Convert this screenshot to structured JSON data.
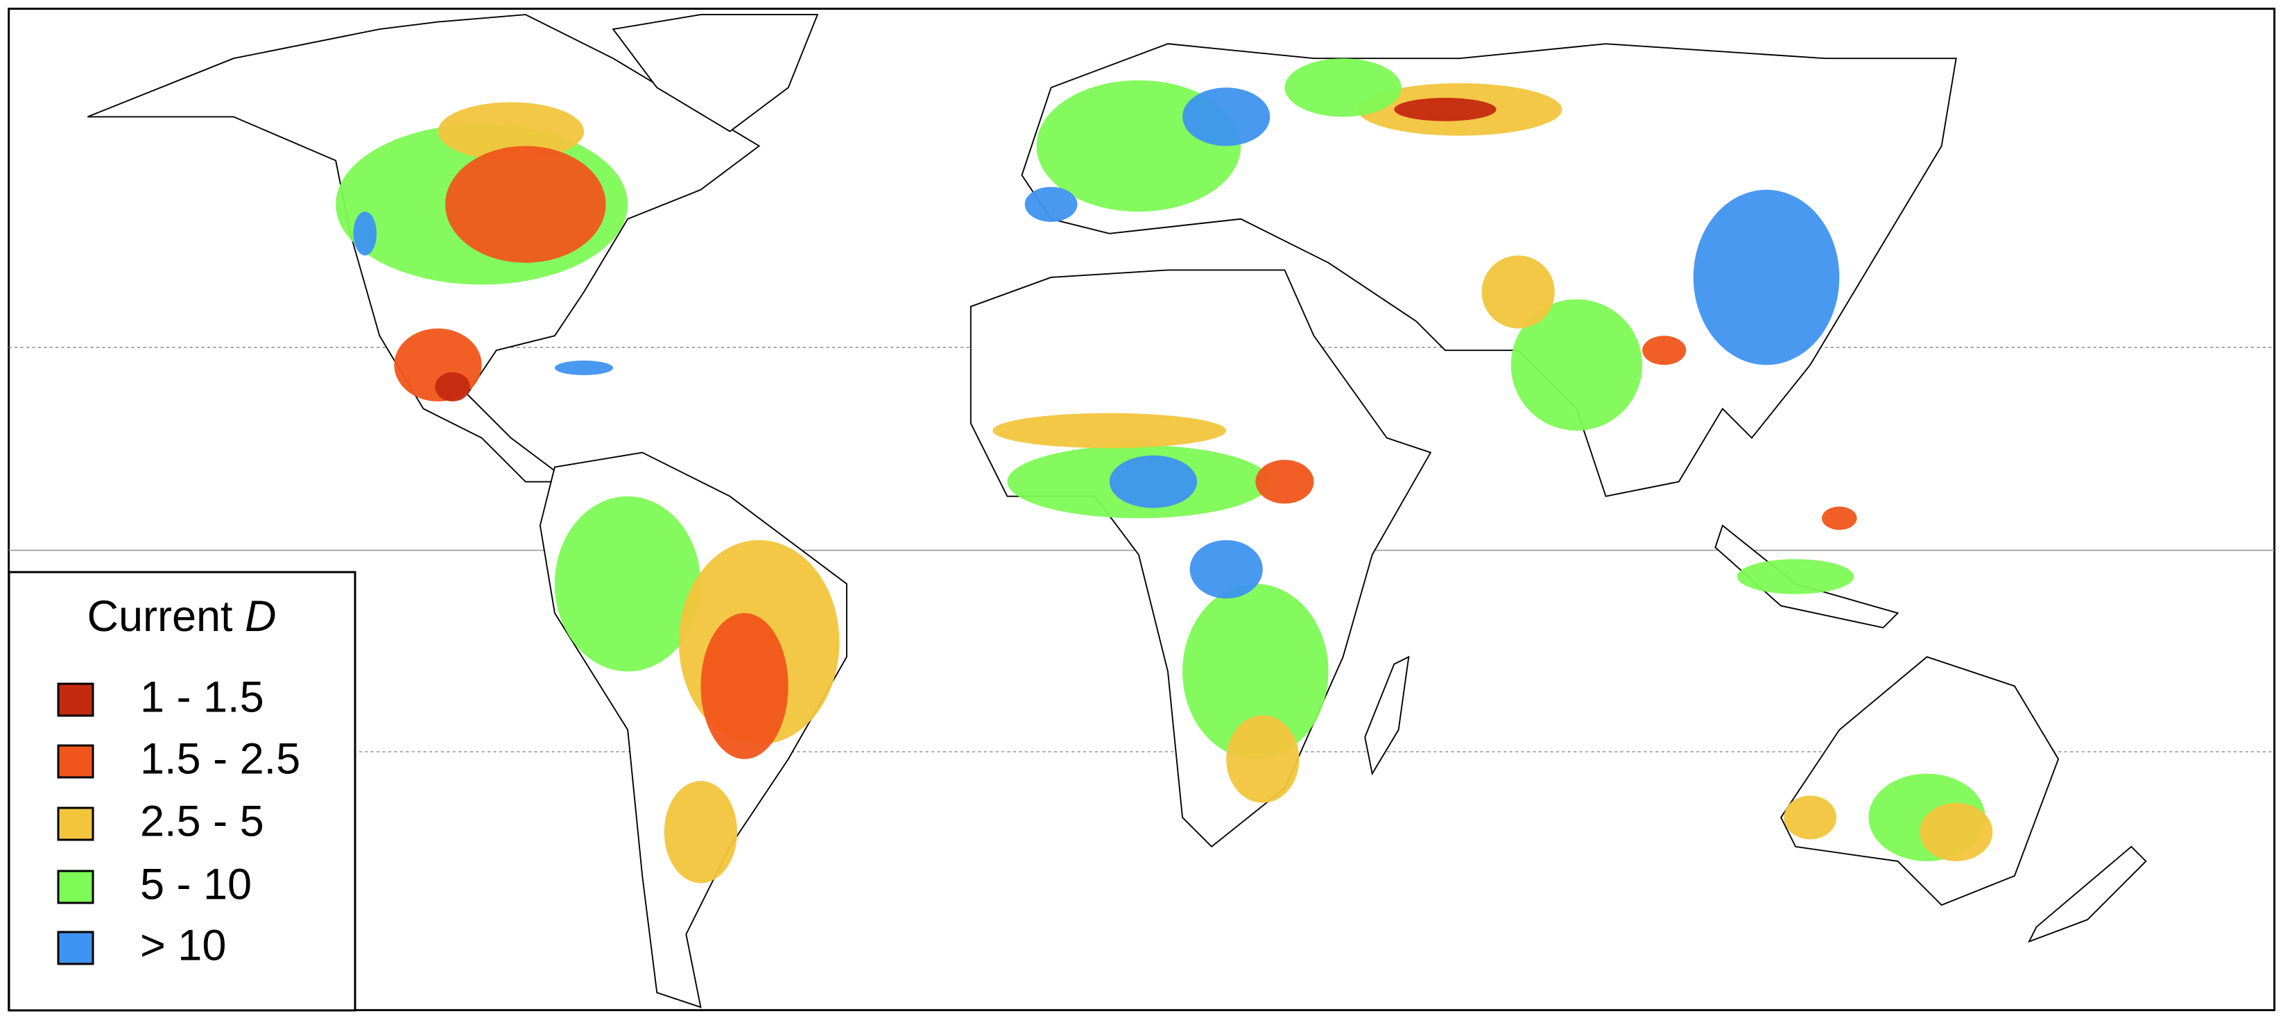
{
  "legend": {
    "title": "Current",
    "title_italic": "D",
    "items": [
      {
        "label": "1 - 1.5",
        "color": "#c42a10"
      },
      {
        "label": "1.5 - 2.5",
        "color": "#f0561b"
      },
      {
        "label": "2.5 - 5",
        "color": "#f2c53d"
      },
      {
        "label": "5 - 10",
        "color": "#7dfa55"
      },
      {
        "label": "> 10",
        "color": "#3f93f0"
      }
    ]
  }
}
